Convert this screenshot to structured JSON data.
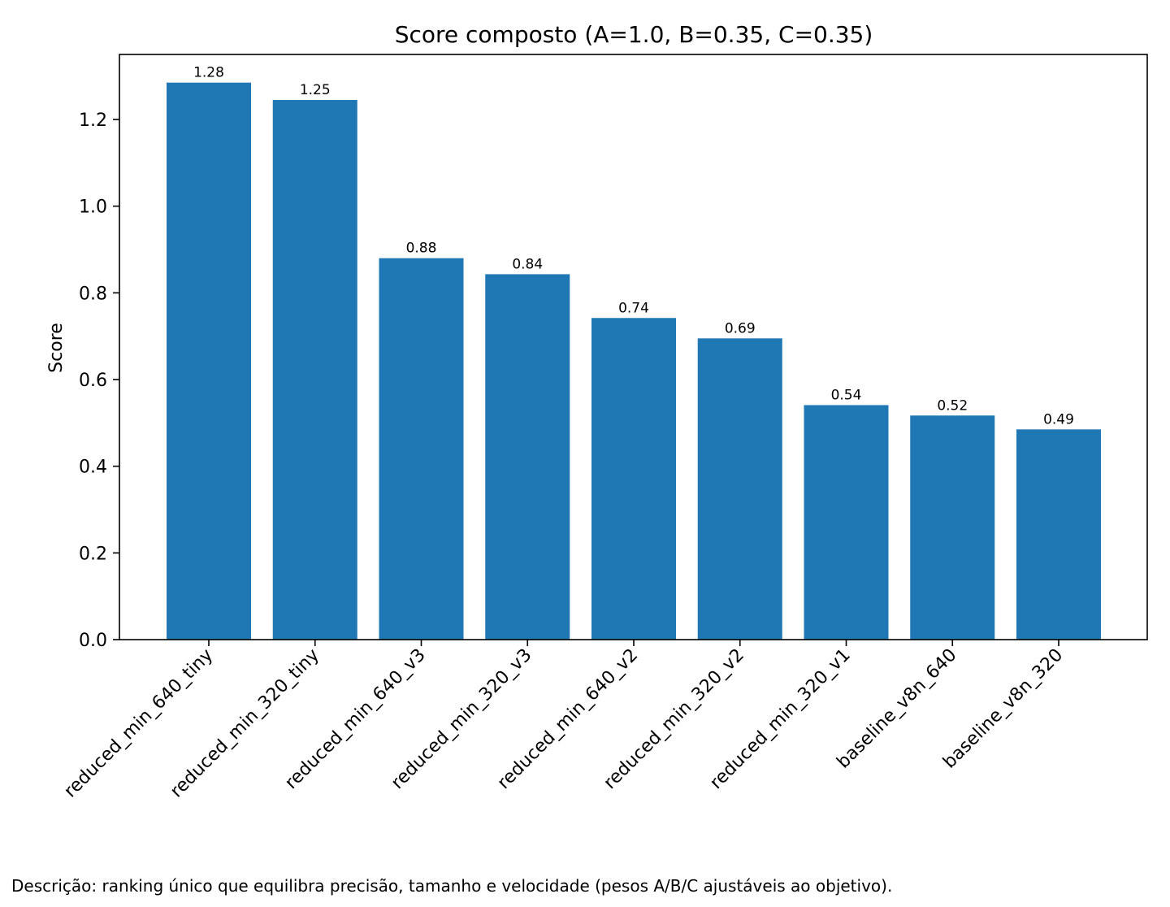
{
  "chart_data": {
    "type": "bar",
    "title": "Score composto (A=1.0, B=0.35, C=0.35)",
    "xlabel": "",
    "ylabel": "Score",
    "categories": [
      "reduced_min_640_tiny",
      "reduced_min_320_tiny",
      "reduced_min_640_v3",
      "reduced_min_320_v3",
      "reduced_min_640_v2",
      "reduced_min_320_v2",
      "reduced_min_320_v1",
      "baseline_v8n_640",
      "baseline_v8n_320"
    ],
    "values": [
      1.285,
      1.245,
      0.88,
      0.843,
      0.742,
      0.695,
      0.541,
      0.517,
      0.485
    ],
    "value_labels": [
      "1.28",
      "1.25",
      "0.88",
      "0.84",
      "0.74",
      "0.69",
      "0.54",
      "0.52",
      "0.49"
    ],
    "yticks": [
      "0.0",
      "0.2",
      "0.4",
      "0.6",
      "0.8",
      "1.0",
      "1.2"
    ],
    "ylim": [
      0,
      1.35
    ],
    "grid": false,
    "bar_color": "#1f77b4"
  },
  "caption": "Descrição: ranking único que equilibra precisão, tamanho e velocidade (pesos A/B/C ajustáveis ao objetivo)."
}
